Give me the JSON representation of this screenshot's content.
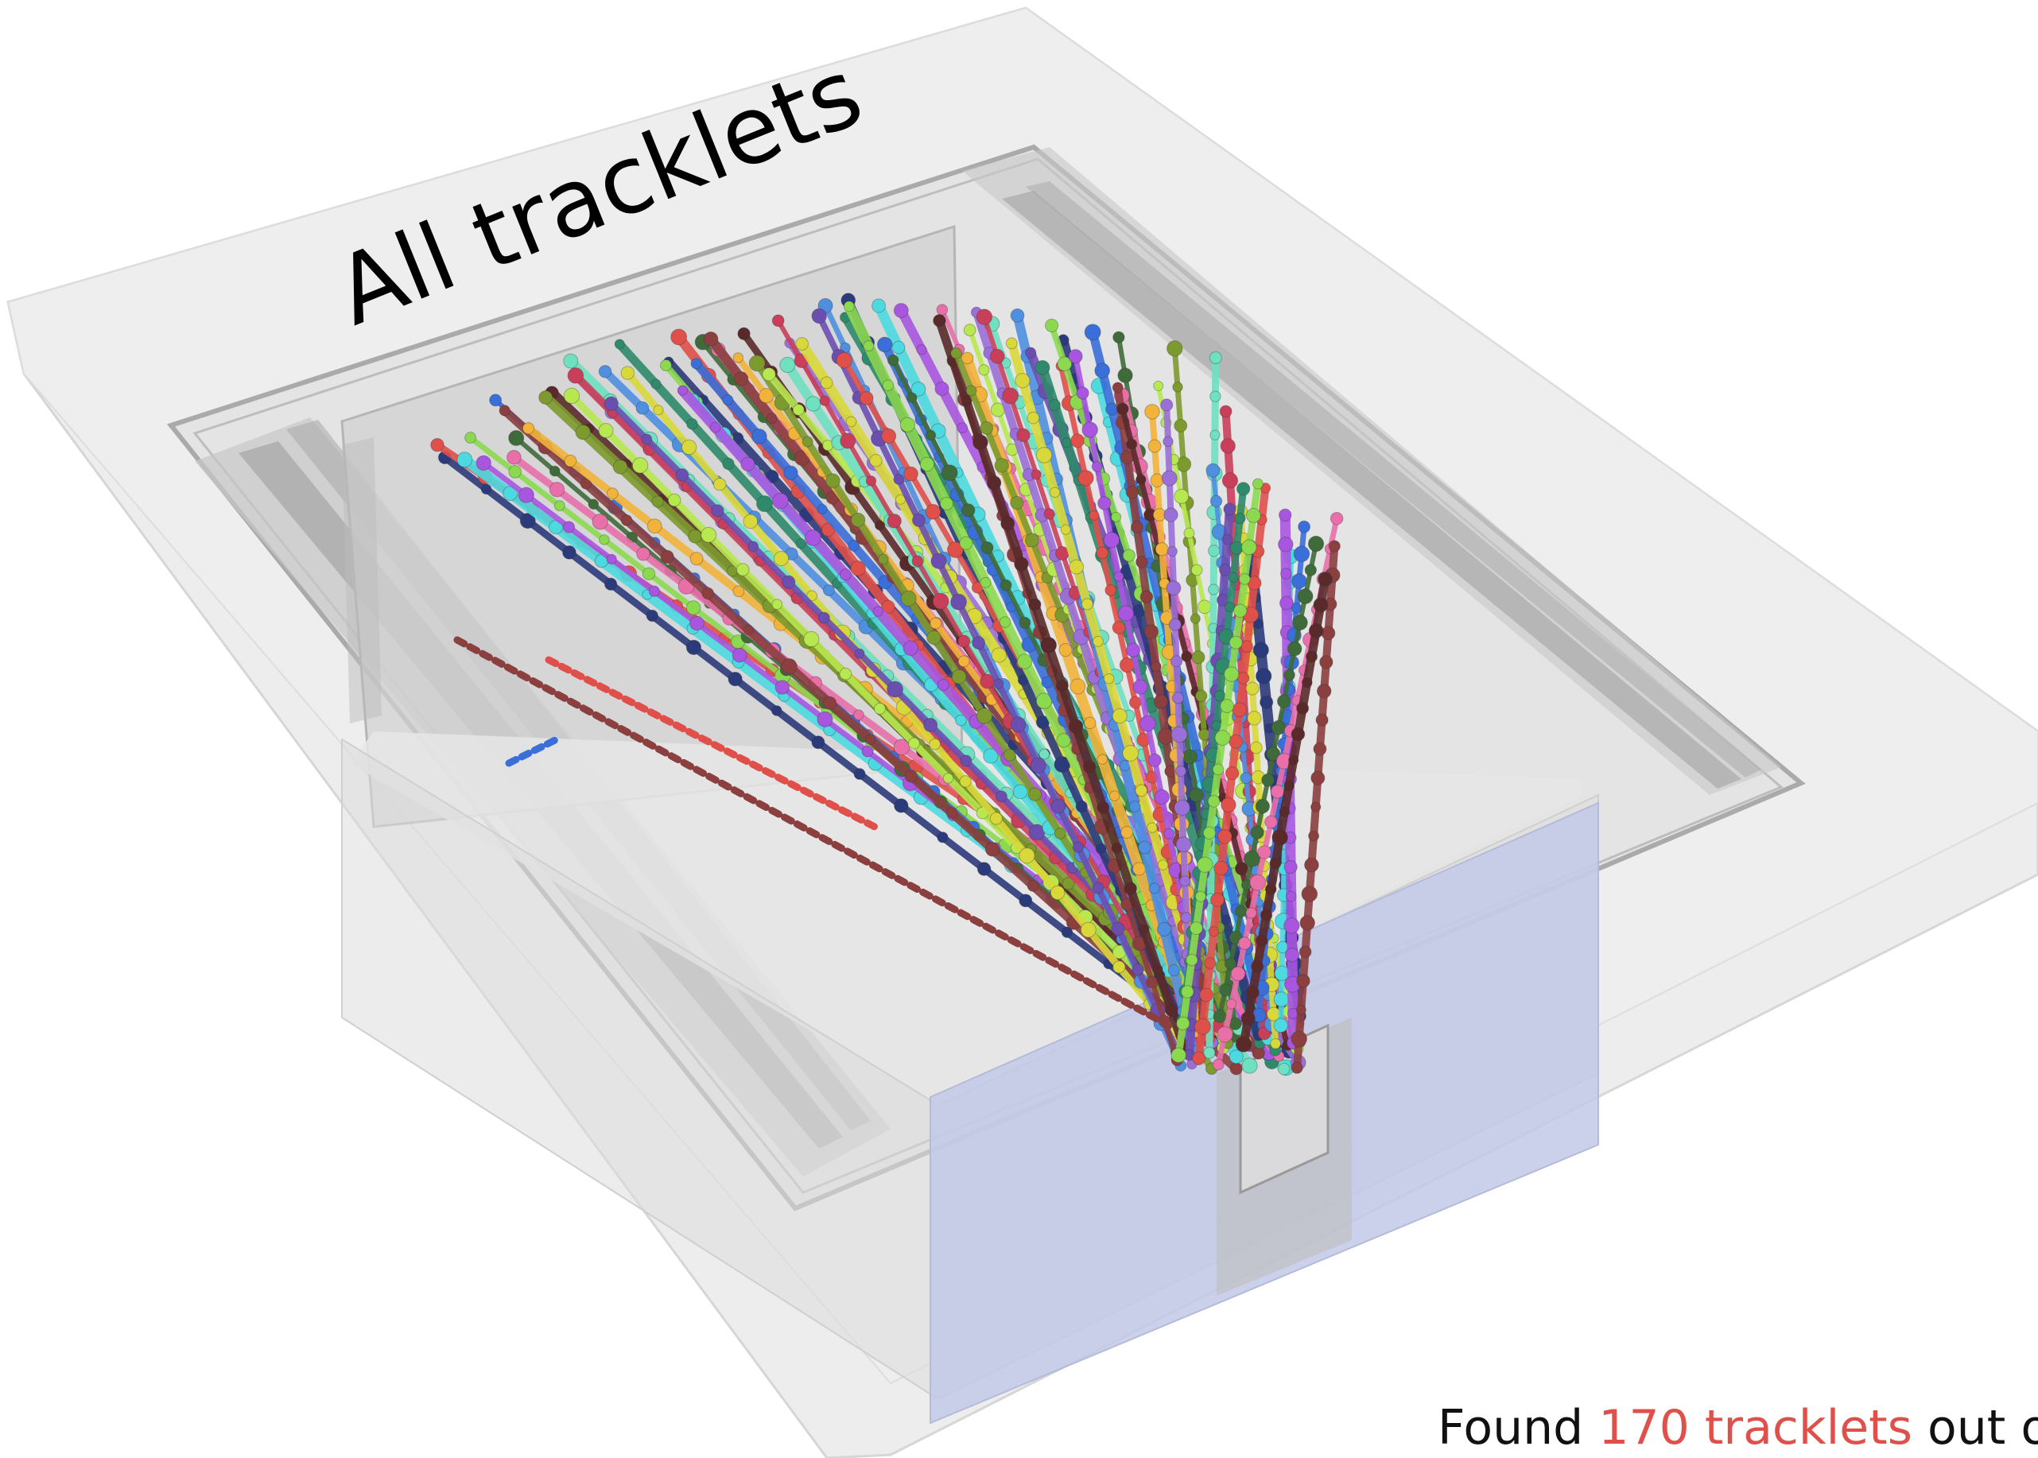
{
  "title": "All tracklets",
  "caption": {
    "prefix": "Found ",
    "highlight": "170 tracklets",
    "suffix": " out o"
  },
  "colors": {
    "highlight": "#e0504a",
    "frame": "#eeeeee",
    "blue_panel": "#c3c9e8",
    "track_palette": [
      "#2b3a7a",
      "#e0504a",
      "#8bd94f",
      "#4cd9e0",
      "#a855e0",
      "#3a6ed8",
      "#3f6b3a",
      "#e86fa8",
      "#8b3f3f",
      "#5a2a2a",
      "#f2b33a",
      "#7d9a2f",
      "#b7e84f",
      "#9a6fd8",
      "#6fe0c0",
      "#c93f5a",
      "#4f8fe0",
      "#d8d83a",
      "#6b4fb0",
      "#2f8a6b"
    ]
  },
  "icons": {
    "detector": "detector-frame-icon"
  }
}
